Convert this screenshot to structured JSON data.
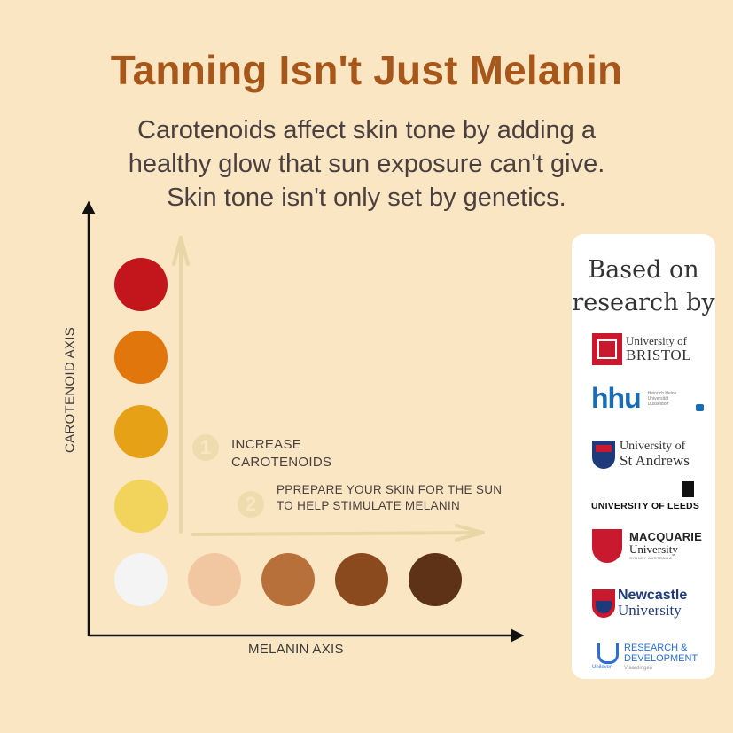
{
  "title": "Tanning Isn't Just Melanin",
  "subtitle": [
    "Carotenoids affect skin tone by adding a",
    "healthy glow that sun exposure can't give.",
    "Skin tone isn't only set by genetics."
  ],
  "axes": {
    "y_label": "CAROTENOID AXIS",
    "x_label": "MELANIN AXIS"
  },
  "steps": [
    {
      "number": "1",
      "lines": [
        "INCREASE",
        "CAROTENOIDS"
      ]
    },
    {
      "number": "2",
      "lines": [
        "PPREPARE YOUR SKIN FOR THE SUN",
        "TO HELP STIMULATE MELANIN"
      ]
    }
  ],
  "colors": {
    "background": "#fbe6c4",
    "title": "#a8571a",
    "arrow_faint": "#e8d6a6",
    "carotenoid_swatches": [
      "#f2d45c",
      "#e6a117",
      "#e0760c",
      "#c2151c"
    ],
    "melanin_swatches": [
      "#f4f4f4",
      "#f0c7a0",
      "#b8703a",
      "#8a4a1e",
      "#5e3217"
    ]
  },
  "research": {
    "heading": [
      "Based on",
      "research by"
    ],
    "logos": {
      "bristol": {
        "icon": "bristol-crest-icon",
        "line1": "University of",
        "line2": "BRISTOL"
      },
      "hhu": {
        "abbr": "hhu",
        "small": [
          "Heinrich Heine",
          "Universität",
          "Düsseldorf"
        ]
      },
      "st_andrews": {
        "icon": "st-andrews-crest-icon",
        "line1": "University of",
        "line2": "St Andrews"
      },
      "leeds": {
        "icon": "leeds-tower-icon",
        "line1": "UNIVERSITY OF LEEDS"
      },
      "macquarie": {
        "icon": "macquarie-crest-icon",
        "line1": "MACQUARIE",
        "line2": "University",
        "line3": "SYDNEY·AUSTRALIA"
      },
      "newcastle": {
        "icon": "newcastle-crest-icon",
        "line1": "Newcastle",
        "line2": "University"
      },
      "unilever": {
        "icon": "unilever-u-icon",
        "line1": "RESEARCH &",
        "line2": "DEVELOPMENT",
        "line3": "Vlaardingen"
      }
    }
  }
}
